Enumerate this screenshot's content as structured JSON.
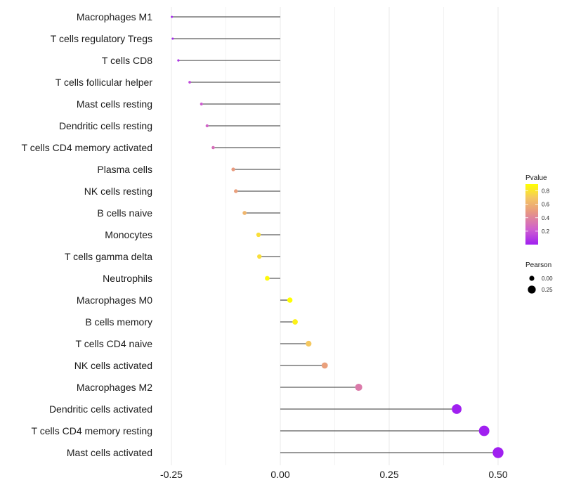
{
  "chart_data": {
    "type": "lollipop",
    "title": "",
    "xlabel": "",
    "ylabel": "",
    "xlim": [
      -0.28,
      0.52
    ],
    "x_ticks": [
      -0.25,
      0.0,
      0.25,
      0.5
    ],
    "x_tick_labels": [
      "-0.25",
      "0.00",
      "0.25",
      "0.50"
    ],
    "grid": true,
    "categories": [
      "Macrophages M1",
      "T cells regulatory  Tregs",
      "T cells CD8",
      "T cells follicular helper",
      "Mast cells resting",
      "Dendritic cells resting",
      "T cells CD4 memory activated",
      "Plasma cells",
      "NK cells resting",
      "B cells naive",
      "Monocytes",
      "T cells gamma delta",
      "Neutrophils",
      "Macrophages M0",
      "B cells memory",
      "T cells CD4 naive",
      "NK cells activated",
      "Macrophages M2",
      "Dendritic cells activated",
      "T cells CD4 memory resting",
      "Mast cells activated"
    ],
    "pearson": [
      -0.249,
      -0.247,
      -0.234,
      -0.208,
      -0.181,
      -0.168,
      -0.154,
      -0.108,
      -0.102,
      -0.082,
      -0.05,
      -0.048,
      -0.03,
      0.022,
      0.034,
      0.065,
      0.102,
      0.18,
      0.405,
      0.468,
      0.5
    ],
    "pvalue": [
      0.02,
      0.02,
      0.06,
      0.15,
      0.22,
      0.25,
      0.3,
      0.5,
      0.52,
      0.62,
      0.78,
      0.78,
      0.88,
      0.9,
      0.85,
      0.7,
      0.52,
      0.35,
      0.0,
      0.0,
      0.0
    ],
    "legend": {
      "pvalue": {
        "title": "Pvalue",
        "ticks": [
          0.2,
          0.4,
          0.6,
          0.8
        ],
        "tick_labels": [
          "0.2",
          "0.4",
          "0.6",
          "0.8"
        ],
        "range": [
          0.0,
          0.9
        ],
        "colors": [
          "#a020f0",
          "#cf5fcf",
          "#e89a80",
          "#f5c860",
          "#ffff00"
        ]
      },
      "pearson": {
        "title": "Pearson",
        "ticks": [
          0.0,
          0.25
        ],
        "tick_labels": [
          "0.00",
          "0.25"
        ]
      },
      "placement": "right"
    },
    "colors": {
      "stem": "#333333",
      "grid": "#ebebeb"
    }
  }
}
